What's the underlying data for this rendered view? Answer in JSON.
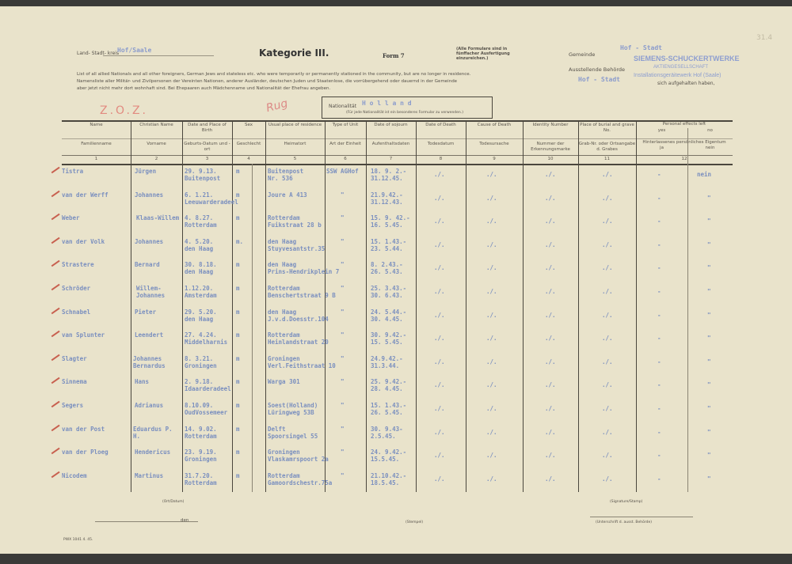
{
  "header": {
    "kreis_label": "Land- Stadt- kreis",
    "kreis_value": "Hof/Saale",
    "title": "Kategorie III.",
    "form": "Form 7",
    "note": "(Alle Formulare sind in fünffacher Ausfertigung einzureichen.)",
    "gemeinde_label": "Gemeinde",
    "gemeinde_value": "Hof - Stadt",
    "behoerde_label": "Ausstellende Behörde",
    "stamp_line1": "SIEMENS-SCHUCKERTWERKE",
    "stamp_line2": "AKTIENGESELLSCHAFT",
    "stamp_line3": "Installationsgeräitewerk Hof (Saale)",
    "page_ref": "31.4",
    "intro_en": "List of all allied Nationals and all other foreigners, German Jews and stateless etc. who were temporarily or permanently stationed in the community, but are no longer in residence.",
    "intro_de1": "Namensliste aller Militär- und Zivilpersonen der Vereinten Nationen, anderer Ausländer, deutschen Juden und Staatenlose, die vorrübergehend oder dauernd in der Gemeinde",
    "intro_de_value": "Hof - Stadt",
    "intro_de_end": "sich aufgehalten haben,",
    "intro_de2": "aber jetzt nicht mehr dort wohnhaft sind. Bei Ehepaaren auch Mädchenname und Nationalität der Ehefrau angeben.",
    "nationality_label": "Nationalität",
    "nationality_value": "H o l l a n d",
    "nationality_note": "(Für jede Nationalität ist ein besonderes Formular zu verwenden.)",
    "annotation_zoz": "Z.O.Z.",
    "annotation_sig": "Rug"
  },
  "columns": [
    {
      "en": "Name",
      "de": "Familienname",
      "n": "1"
    },
    {
      "en": "Christian Name",
      "de": "Vorname",
      "n": "2"
    },
    {
      "en": "Date and Place of Birth",
      "de": "Geburts-Datum und -ort",
      "n": "3"
    },
    {
      "en": "Sex",
      "de": "Geschlecht",
      "n": "4"
    },
    {
      "en": "Usual place of residence",
      "de": "Heimatort",
      "n": "5"
    },
    {
      "en": "Type of Unit",
      "de": "Art der Einheit",
      "n": "6"
    },
    {
      "en": "Date of sojourn",
      "de": "Aufenthaltsdaten",
      "n": "7"
    },
    {
      "en": "Date of Death",
      "de": "Todesdatum",
      "n": "8"
    },
    {
      "en": "Cause of Death",
      "de": "Todesursache",
      "n": "9"
    },
    {
      "en": "Identity Number",
      "de": "Nummer der Erkennungsmarke",
      "n": "10"
    },
    {
      "en": "Place of burial and grave No.",
      "de": "Grab-Nr. oder Ortsangabe d. Grabes",
      "n": "11"
    },
    {
      "en": "Personal effects left",
      "de": "Hinterlassenes persönliches Eigentum",
      "n": "12",
      "yes": "yes",
      "no": "no",
      "ja": "ja",
      "nein": "nein"
    }
  ],
  "rows": [
    {
      "name": "Tistra",
      "first": "Jürgen",
      "b1": "29. 9.13.",
      "b2": "Buitenpost",
      "sex": "m",
      "r1": "Buitenpost",
      "r2": "Nr. 536",
      "unit": "SSW AGHof",
      "s1": "18. 9. 2.-",
      "s2": "31.12.45.",
      "death": "./.",
      "cause": "./.",
      "id": "./.",
      "burial": "./.",
      "yes": "-",
      "no": "nein"
    },
    {
      "name": "van der Werff",
      "first": "Johannes",
      "b1": "6. 1.21.",
      "b2": "Leeuwarderadeel",
      "sex": "m",
      "r1": "Joure A 413",
      "r2": "",
      "unit": "\"",
      "s1": "21.9.42.-",
      "s2": "31.12.43.",
      "death": "./.",
      "cause": "./.",
      "id": "./.",
      "burial": "./.",
      "yes": "-",
      "no": "\""
    },
    {
      "name": "Weber",
      "first": "Klaas-Willem",
      "b1": "4. 8.27.",
      "b2": "Rotterdam",
      "sex": "m",
      "r1": "Rotterdam",
      "r2": "Fuikstraat 28 b",
      "unit": "\"",
      "s1": "15. 9. 42.-",
      "s2": "16. 5.45.",
      "death": "./.",
      "cause": "./.",
      "id": "./.",
      "burial": "./.",
      "yes": "-",
      "no": "\""
    },
    {
      "name": "van der Volk",
      "first": "Johannes",
      "b1": "4. 5.20.",
      "b2": "den Haag",
      "sex": "m.",
      "r1": "den Haag",
      "r2": "Stuyvesantstr.35",
      "unit": "\"",
      "s1": "15. 1.43.-",
      "s2": "23. 5.44.",
      "death": "./.",
      "cause": "./.",
      "id": "./.",
      "burial": "./.",
      "yes": "-",
      "no": "\""
    },
    {
      "name": "Strastere",
      "first": "Bernard",
      "b1": "30. 8.18.",
      "b2": "den Haag",
      "sex": "m",
      "r1": "den Haag",
      "r2": "Prins-Hendrikplein 7",
      "unit": "\"",
      "s1": "8. 2.43.-",
      "s2": "26. 5.43.",
      "death": "./.",
      "cause": "./.",
      "id": "./.",
      "burial": "./.",
      "yes": "-",
      "no": "\""
    },
    {
      "name": "Schröder",
      "first": "Willem-Johannes",
      "b1": "1.12.20.",
      "b2": "Amsterdam",
      "sex": "m",
      "r1": "Rotterdam",
      "r2": "Benschertstraat 9 B",
      "unit": "\"",
      "s1": "25. 3.43.-",
      "s2": "30. 6.43.",
      "death": "./.",
      "cause": "./.",
      "id": "./.",
      "burial": "./.",
      "yes": "-",
      "no": "\""
    },
    {
      "name": "Schnabel",
      "first": "Pieter",
      "b1": "29. 5.20.",
      "b2": "den Haag",
      "sex": "m",
      "r1": "den Haag",
      "r2": "J.v.d.Doesstr.104",
      "unit": "\"",
      "s1": "24. 5.44.-",
      "s2": "30. 4.45.",
      "death": "./.",
      "cause": "./.",
      "id": "./.",
      "burial": "./.",
      "yes": "-",
      "no": "\""
    },
    {
      "name": "van Splunter",
      "first": "Leendert",
      "b1": "27. 4.24.",
      "b2": "Middelharnis",
      "sex": "m",
      "r1": "Rotterdam",
      "r2": "Heinlandstraat 20",
      "unit": "\"",
      "s1": "30. 9.42.-",
      "s2": "15. 5.45.",
      "death": "./.",
      "cause": "./.",
      "id": "./.",
      "burial": "./.",
      "yes": "-",
      "no": "\""
    },
    {
      "name": "Slagter",
      "first": "Johannes Bernardus",
      "b1": "8. 3.21.",
      "b2": "Groningen",
      "sex": "m",
      "r1": "Groningen",
      "r2": "Verl.Feithstraat 10",
      "unit": "\"",
      "s1": "24.9.42.-",
      "s2": "31.3.44.",
      "death": "./.",
      "cause": "./.",
      "id": "./.",
      "burial": "./.",
      "yes": "-",
      "no": "\""
    },
    {
      "name": "Sinnema",
      "first": "Hans",
      "b1": "2. 9.18.",
      "b2": "Idaarderadeel",
      "sex": "m",
      "r1": "Warga 301",
      "r2": "",
      "unit": "\"",
      "s1": "25. 9.42.-",
      "s2": "28. 4.45.",
      "death": "./.",
      "cause": "./.",
      "id": "./.",
      "burial": "./.",
      "yes": "-",
      "no": "\""
    },
    {
      "name": "Segers",
      "first": "Adrianus",
      "b1": "8.10.09.",
      "b2": "OudVossemeer",
      "sex": "m",
      "r1": "Soest(Holland)",
      "r2": "Lüringweg 53B",
      "unit": "\"",
      "s1": "15. 1.43.-",
      "s2": "26. 5.45.",
      "death": "./.",
      "cause": "./.",
      "id": "./.",
      "burial": "./.",
      "yes": "-",
      "no": "\""
    },
    {
      "name": "van der Post",
      "first": "Eduardus P. H.",
      "b1": "14. 9.02.",
      "b2": "Rotterdam",
      "sex": "m",
      "r1": "Delft",
      "r2": "Spoorsingel 55",
      "unit": "\"",
      "s1": "30. 9.43-",
      "s2": "2.5.45.",
      "death": "./.",
      "cause": "./.",
      "id": "./.",
      "burial": "./.",
      "yes": "-",
      "no": "\""
    },
    {
      "name": "van der Ploeg",
      "first": "Hendericus",
      "b1": "23. 9.19.",
      "b2": "Groningen",
      "sex": "m",
      "r1": "Groningen",
      "r2": "Vlaskamrspoort 2a",
      "unit": "\"",
      "s1": "24. 9.42.-",
      "s2": "15.5.45.",
      "death": "./.",
      "cause": "./.",
      "id": "./.",
      "burial": "./.",
      "yes": "-",
      "no": "\""
    },
    {
      "name": "Nicodem",
      "first": "Martinus",
      "b1": "31.7.20.",
      "b2": "Rotterdam",
      "sex": "m",
      "r1": "Rotterdam",
      "r2": "Gamoordschestr.75a",
      "unit": "\"",
      "s1": "21.10.42.-",
      "s2": "18.5.45.",
      "death": "./.",
      "cause": "./.",
      "id": "./.",
      "burial": "./.",
      "yes": "-",
      "no": "\""
    }
  ],
  "footer": {
    "ort_datum": "(Ort/Datum)",
    "den": "den",
    "stempel": "(Stempel)",
    "signature": "(Signature/Stamp)",
    "unterschrift": "(Unterschrift d. ausst. Behörde)",
    "print_code": "PWX 1041 4. 45."
  }
}
